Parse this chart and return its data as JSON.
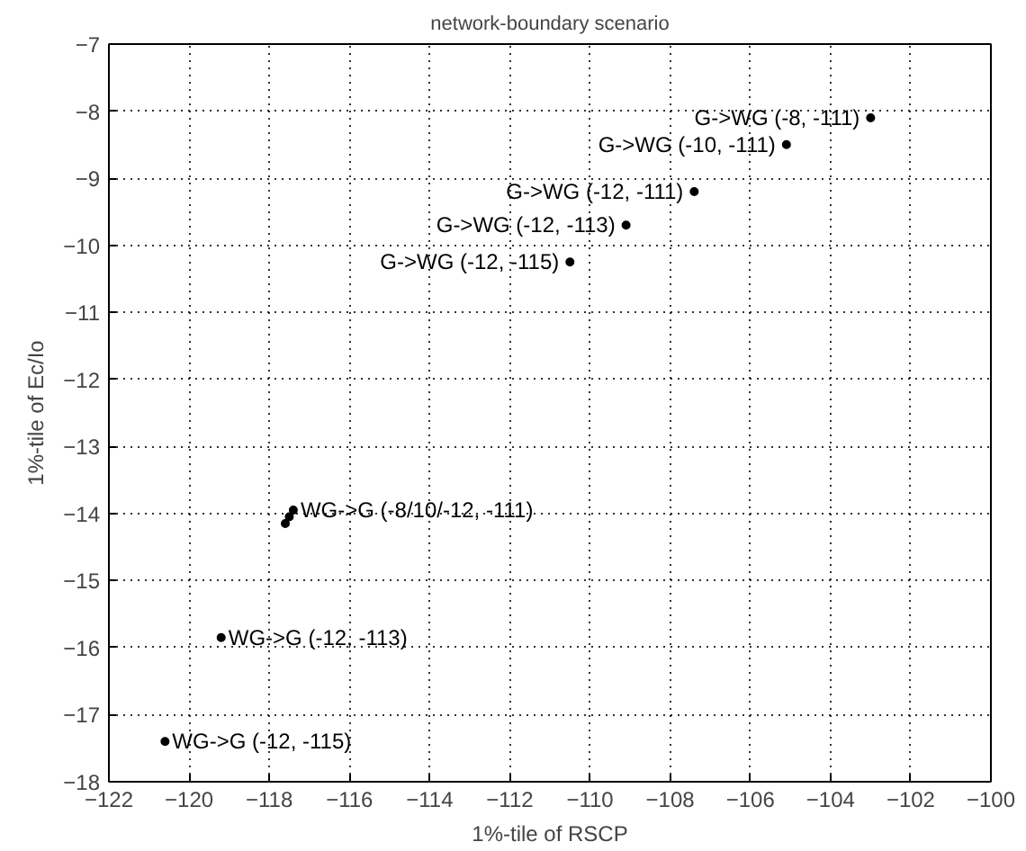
{
  "chart_data": {
    "type": "scatter",
    "title": "network-boundary scenario",
    "xlabel": "1%-tile of RSCP",
    "ylabel": "1%-tile of Ec/Io",
    "x": [
      -103.0,
      -105.1,
      -107.4,
      -109.1,
      -110.5,
      -117.4,
      -117.5,
      -117.6,
      -119.2,
      -120.6
    ],
    "series": [
      {
        "color": "#000000",
        "values": [
          -8.1,
          -8.5,
          -9.2,
          -9.7,
          -10.25,
          -13.95,
          -14.05,
          -14.15,
          -15.85,
          -17.4
        ]
      }
    ],
    "xlim": [
      -122,
      -100
    ],
    "ylim": [
      -18,
      -7
    ],
    "xticks": [
      -122,
      -120,
      -118,
      -116,
      -114,
      -112,
      -110,
      -108,
      -106,
      -104,
      -102,
      -100
    ],
    "yticks": [
      -18,
      -17,
      -16,
      -15,
      -14,
      -13,
      -12,
      -11,
      -10,
      -9,
      -8,
      -7
    ],
    "grid": true,
    "marker": "circle",
    "annotations": [
      {
        "text": "G->WG (-8, -111)",
        "x": -103.0,
        "y": -8.1
      },
      {
        "text": "G->WG (-10, -111)",
        "x": -105.1,
        "y": -8.5
      },
      {
        "text": "G->WG (-12, -111)",
        "x": -107.4,
        "y": -9.2
      },
      {
        "text": "G->WG (-12, -113)",
        "x": -109.1,
        "y": -9.7
      },
      {
        "text": "G->WG (-12, -115)",
        "x": -110.5,
        "y": -10.25
      },
      {
        "text": "WG->G (-8/10/-12, -111)",
        "x": -117.4,
        "y": -13.95
      },
      {
        "text": "WG->G (-12, -113)",
        "x": -119.2,
        "y": -15.85
      },
      {
        "text": "WG->G (-12, -115)",
        "x": -120.6,
        "y": -17.4
      }
    ]
  }
}
